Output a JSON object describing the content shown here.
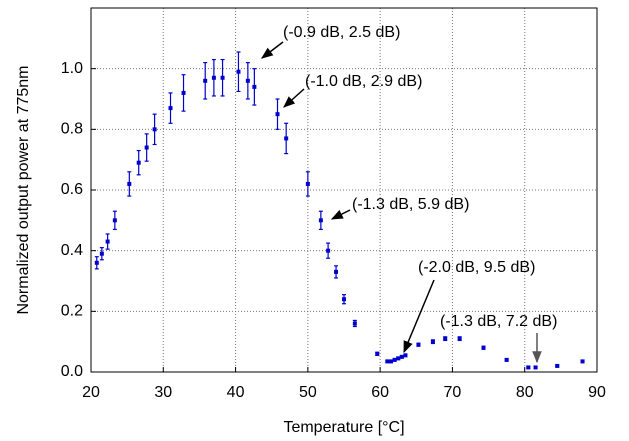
{
  "chart_data": {
    "type": "errorbar-scatter",
    "xlabel": "Temperature [°C]",
    "ylabel": "Normalized output power at 775nm",
    "xlim": [
      20,
      90
    ],
    "xticks": [
      20,
      30,
      40,
      50,
      60,
      70,
      80,
      90
    ],
    "ylim": [
      0,
      1.2
    ],
    "yticks": [
      {
        "value": 0,
        "label": "0.0"
      },
      0.2,
      0.4,
      0.6,
      0.8,
      {
        "value": 1,
        "label": "1.0"
      }
    ],
    "grid": true,
    "series": [
      {
        "color": "#0000cc",
        "x": [
          20.8,
          21.5,
          22.3,
          23.3,
          25.3,
          26.6,
          27.7,
          28.8,
          31.0,
          32.8,
          35.8,
          37.0,
          38.2,
          40.4,
          41.7,
          42.6,
          45.8,
          47.0,
          50.0,
          51.8,
          52.8,
          53.9,
          55.0,
          56.5,
          59.6,
          61.0,
          61.5,
          62.0,
          62.5,
          63.0,
          63.5,
          65.3,
          67.3,
          69.0,
          71.0,
          74.3,
          77.5,
          80.5,
          81.5,
          84.5,
          88.0
        ],
        "values": [
          0.36,
          0.39,
          0.43,
          0.5,
          0.62,
          0.69,
          0.74,
          0.8,
          0.87,
          0.92,
          0.96,
          0.97,
          0.97,
          0.99,
          0.96,
          0.94,
          0.85,
          0.77,
          0.62,
          0.5,
          0.4,
          0.33,
          0.24,
          0.16,
          0.06,
          0.035,
          0.035,
          0.04,
          0.045,
          0.05,
          0.055,
          0.09,
          0.1,
          0.11,
          0.11,
          0.08,
          0.04,
          0.015,
          0.015,
          0.02,
          0.035
        ],
        "errors": [
          0.02,
          0.02,
          0.025,
          0.03,
          0.04,
          0.04,
          0.045,
          0.05,
          0.05,
          0.06,
          0.06,
          0.06,
          0.06,
          0.065,
          0.06,
          0.06,
          0.05,
          0.05,
          0.04,
          0.03,
          0.025,
          0.02,
          0.015,
          0.01,
          0.005,
          0.004,
          0.004,
          0.004,
          0.004,
          0.004,
          0.004,
          0.005,
          0.006,
          0.006,
          0.006,
          0.005,
          0.004,
          0.003,
          0.003,
          0.003,
          0.004
        ]
      }
    ],
    "annotations": [
      "(-0.9 dB, 2.5 dB)",
      "(-1.0 dB, 2.9 dB)",
      "(-1.3 dB, 5.9 dB)",
      "(-2.0 dB, 9.5 dB)",
      "(-1.3 dB, 7.2 dB)"
    ]
  }
}
